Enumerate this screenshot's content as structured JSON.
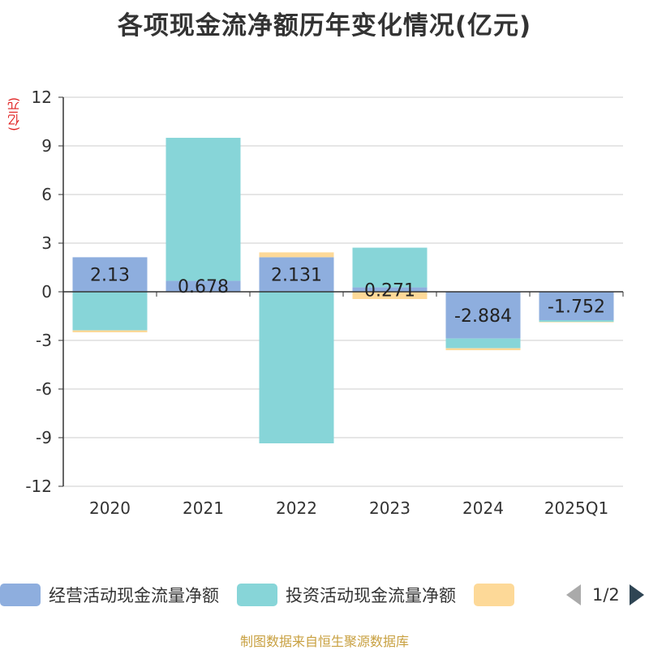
{
  "chart_data": {
    "type": "bar",
    "stacked": true,
    "title": "各项现金流净额历年变化情况(亿元)",
    "ylabel": "(亿元)",
    "categories": [
      "2020",
      "2021",
      "2022",
      "2023",
      "2024",
      "2025Q1"
    ],
    "ylim": [
      -12,
      12
    ],
    "yticks": [
      12,
      9,
      6,
      3,
      0,
      -3,
      -6,
      -9,
      -12
    ],
    "grid": true,
    "series": [
      {
        "name": "经营活动现金流量净额",
        "color": "#8eaede",
        "values": [
          2.13,
          0.678,
          2.131,
          0.271,
          -2.884,
          -1.752
        ],
        "labels": [
          "2.13",
          "0.678",
          "2.131",
          "0.271",
          "-2.884",
          "-1.752"
        ]
      },
      {
        "name": "投资活动现金流量净额",
        "color": "#87d5d8",
        "values": [
          -2.38,
          8.82,
          -9.35,
          2.45,
          -0.6,
          -0.1
        ]
      },
      {
        "name": "",
        "color": "#fdd998",
        "values": [
          -0.12,
          0.0,
          0.3,
          -0.45,
          -0.12,
          -0.03
        ]
      }
    ],
    "legend": {
      "position": "bottom",
      "page": "1/2"
    }
  },
  "footer": "制图数据来自恒生聚源数据库"
}
